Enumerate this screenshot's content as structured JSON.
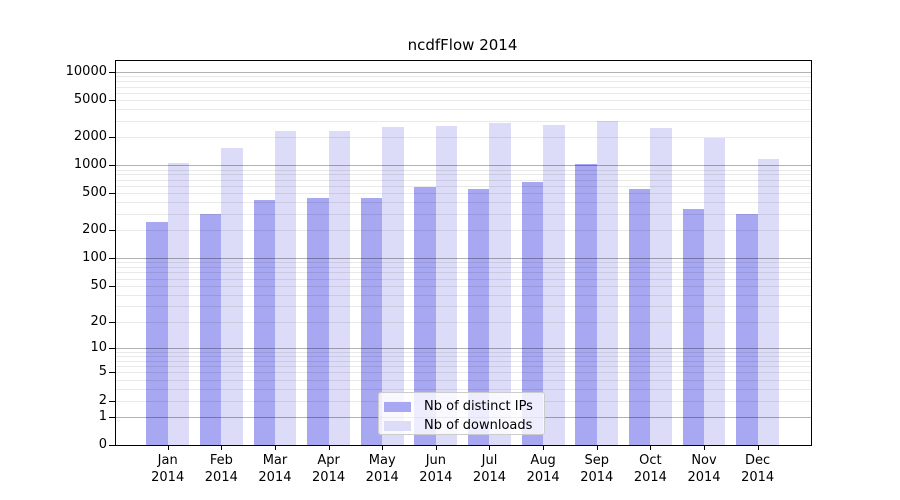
{
  "chart_data": {
    "type": "bar",
    "title": "ncdfFlow 2014",
    "yscale": "log1p",
    "grid": true,
    "legend_position": "lower center",
    "x": [
      "Jan 2014",
      "Feb 2014",
      "Mar 2014",
      "Apr 2014",
      "May 2014",
      "Jun 2014",
      "Jul 2014",
      "Aug 2014",
      "Sep 2014",
      "Oct 2014",
      "Nov 2014",
      "Dec 2014"
    ],
    "series": [
      {
        "name": "Nb of distinct IPs",
        "color": "#a7a7f2",
        "values": [
          245,
          300,
          425,
          445,
          445,
          590,
          560,
          670,
          1040,
          560,
          340,
          300
        ]
      },
      {
        "name": "Nb of downloads",
        "color": "#dcdcf8",
        "values": [
          1070,
          1530,
          2310,
          2310,
          2550,
          2660,
          2815,
          2725,
          3030,
          2490,
          1960,
          1165
        ]
      }
    ],
    "y_ticks": [
      10000,
      5000,
      2000,
      1000,
      500,
      200,
      100,
      50,
      20,
      10,
      5,
      2,
      1,
      0
    ],
    "y_major_gridlines": [
      1,
      10,
      100,
      1000,
      10000
    ],
    "ylim": [
      0,
      13000
    ]
  },
  "colors": {
    "ips_bar": "#a7a7f2",
    "downloads_bar": "#dcdcf8",
    "major_grid": "rgba(0,0,0,0.30)",
    "minor_grid": "rgba(0,0,0,0.085)",
    "spine": "#000000",
    "legend_border": "#cccccc"
  }
}
